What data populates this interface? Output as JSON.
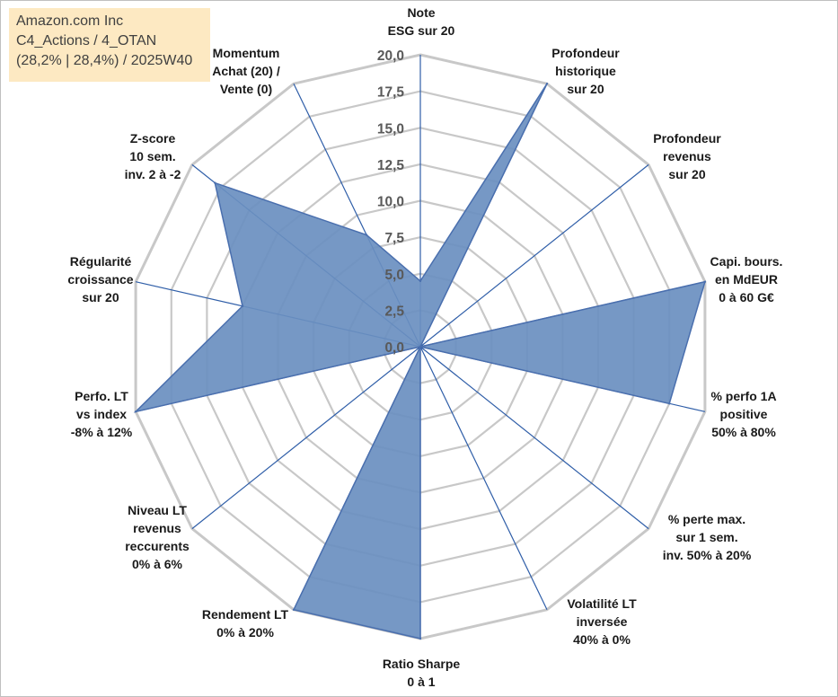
{
  "info": {
    "line1": "Amazon.com Inc",
    "line2": "C4_Actions / 4_OTAN",
    "line3": "(28,2% | 28,4%) / 2025W40"
  },
  "chart_data": {
    "type": "radar",
    "rmax": 20,
    "ticks": [
      "0,0",
      "2,5",
      "5,0",
      "7,5",
      "10,0",
      "12,5",
      "15,0",
      "17,5",
      "20,0"
    ],
    "categories": [
      [
        "Note",
        "ESG sur 20"
      ],
      [
        "Profondeur",
        "historique",
        "sur 20"
      ],
      [
        "Profondeur",
        "revenus",
        "sur 20"
      ],
      [
        "Capi. bours.",
        "en MdEUR",
        "0 à 60 G€"
      ],
      [
        "% perfo 1A",
        "positive",
        "50% à 80%"
      ],
      [
        "% perte max.",
        "sur 1 sem.",
        "inv. 50% à 20%"
      ],
      [
        "Volatilité LT",
        "inversée",
        "40% à 0%"
      ],
      [
        "Ratio Sharpe",
        "0 à 1"
      ],
      [
        "Rendement LT",
        "0% à 20%"
      ],
      [
        "Niveau LT",
        "revenus",
        "reccurents",
        "0% à 6%"
      ],
      [
        "Perfo. LT",
        "vs index",
        "-8% à 12%"
      ],
      [
        "Régularité",
        "croissance",
        "sur 20"
      ],
      [
        "Z-score",
        "10 sem.",
        "inv. 2 à -2"
      ],
      [
        "Momentum",
        "Achat (20) /",
        "Vente (0)"
      ]
    ],
    "series": [
      {
        "name": "Amazon.com Inc",
        "values": [
          4.5,
          20,
          0,
          20,
          17.5,
          0,
          0,
          20,
          20,
          0,
          20,
          12.5,
          18,
          8.5
        ]
      }
    ],
    "colors": {
      "fill": "#6a8fc0",
      "stroke": "#4a6fae",
      "grid": "#c8c8c8",
      "spoke": "#2f5ea8"
    }
  }
}
